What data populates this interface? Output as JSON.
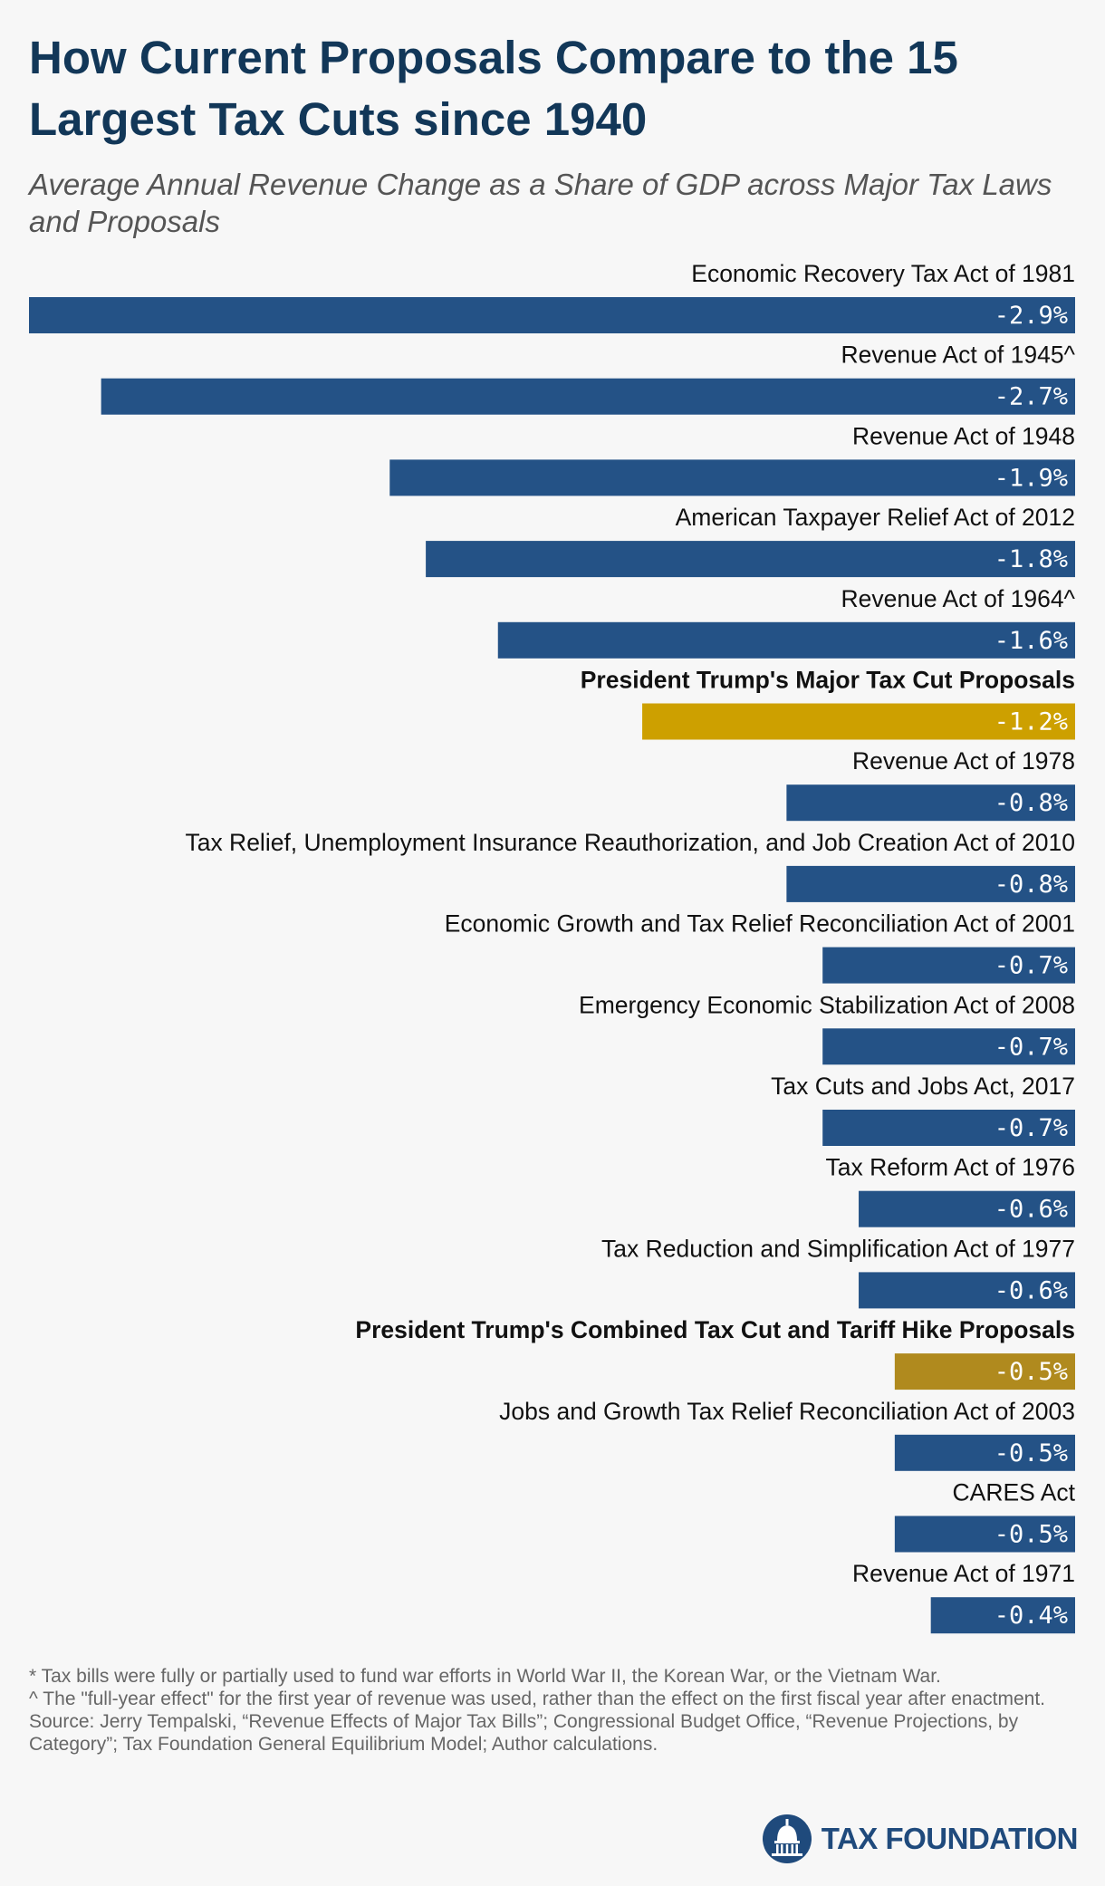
{
  "title": "How Current Proposals Compare to the 15 Largest Tax Cuts since 1940",
  "subtitle": "Average Annual Revenue Change as a Share of GDP across Major Tax Laws and Proposals",
  "colors": {
    "law_bar": "#245286",
    "proposal_bar": "#cda000",
    "combined_bar": "#b08a1e",
    "title": "#123758",
    "background": "#f7f7f7"
  },
  "chart_data": {
    "type": "bar",
    "orientation": "horizontal",
    "value_unit": "% of GDP",
    "xlim": [
      -2.9,
      0
    ],
    "grid": false,
    "legend": "none",
    "bars": [
      {
        "label": "Economic Recovery Tax Act of 1981",
        "value": -2.9,
        "value_label": "-2.9%",
        "kind": "law",
        "bold": false
      },
      {
        "label": "Revenue Act of 1945^",
        "value": -2.7,
        "value_label": "-2.7%",
        "kind": "law",
        "bold": false
      },
      {
        "label": "Revenue Act of 1948",
        "value": -1.9,
        "value_label": "-1.9%",
        "kind": "law",
        "bold": false
      },
      {
        "label": "American Taxpayer Relief Act of 2012",
        "value": -1.8,
        "value_label": "-1.8%",
        "kind": "law",
        "bold": false
      },
      {
        "label": "Revenue Act of 1964^",
        "value": -1.6,
        "value_label": "-1.6%",
        "kind": "law",
        "bold": false
      },
      {
        "label": "President Trump's Major Tax Cut Proposals",
        "value": -1.2,
        "value_label": "-1.2%",
        "kind": "proposal",
        "bold": true
      },
      {
        "label": "Revenue Act of 1978",
        "value": -0.8,
        "value_label": "-0.8%",
        "kind": "law",
        "bold": false
      },
      {
        "label": "Tax Relief, Unemployment Insurance Reauthorization, and Job Creation Act of 2010",
        "value": -0.8,
        "value_label": "-0.8%",
        "kind": "law",
        "bold": false
      },
      {
        "label": "Economic Growth and Tax Relief Reconciliation Act of 2001",
        "value": -0.7,
        "value_label": "-0.7%",
        "kind": "law",
        "bold": false
      },
      {
        "label": "Emergency Economic Stabilization Act of 2008",
        "value": -0.7,
        "value_label": "-0.7%",
        "kind": "law",
        "bold": false
      },
      {
        "label": "Tax Cuts and Jobs Act, 2017",
        "value": -0.7,
        "value_label": "-0.7%",
        "kind": "law",
        "bold": false
      },
      {
        "label": "Tax Reform Act of 1976",
        "value": -0.6,
        "value_label": "-0.6%",
        "kind": "law",
        "bold": false
      },
      {
        "label": "Tax Reduction and Simplification Act of 1977",
        "value": -0.6,
        "value_label": "-0.6%",
        "kind": "law",
        "bold": false
      },
      {
        "label": "President Trump's Combined Tax Cut and Tariff Hike Proposals",
        "value": -0.5,
        "value_label": "-0.5%",
        "kind": "combined",
        "bold": true
      },
      {
        "label": "Jobs and Growth Tax Relief Reconciliation Act of 2003",
        "value": -0.5,
        "value_label": "-0.5%",
        "kind": "law",
        "bold": false
      },
      {
        "label": "CARES Act",
        "value": -0.5,
        "value_label": "-0.5%",
        "kind": "law",
        "bold": false
      },
      {
        "label": "Revenue Act of 1971",
        "value": -0.4,
        "value_label": "-0.4%",
        "kind": "law",
        "bold": false
      }
    ]
  },
  "notes": {
    "note1": "* Tax bills were fully or partially used to fund war efforts in World War II, the Korean War, or the Vietnam War.",
    "note2": "^ The \"full-year effect\" for the first year of revenue was used, rather than the effect on the first fiscal year after enactment.",
    "source": "Source: Jerry Tempalski, “Revenue Effects of Major Tax Bills”; Congressional Budget Office, “Revenue Projections, by Category”; Tax Foundation General Equilibrium Model; Author calculations."
  },
  "logo": {
    "icon": "capitol-dome-icon",
    "text": "TAX FOUNDATION"
  }
}
